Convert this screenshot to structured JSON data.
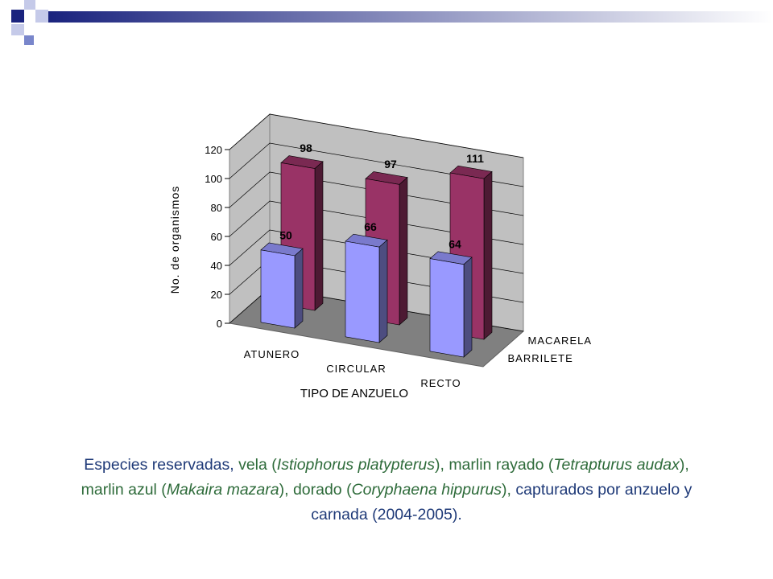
{
  "chart_data": {
    "type": "bar3d",
    "x_label": "TIPO DE ANZUELO",
    "y_label": "No. de organismos",
    "categories": [
      "ATUNERO",
      "CIRCULAR",
      "RECTO"
    ],
    "series": [
      {
        "name": "MACARELA",
        "color": "#993366",
        "values": [
          98,
          97,
          111
        ]
      },
      {
        "name": "BARRILETE",
        "color": "#9999ff",
        "values": [
          50,
          66,
          64
        ]
      }
    ],
    "ylim": [
      0,
      120
    ],
    "yticks": [
      0,
      20,
      40,
      60,
      80,
      100,
      120
    ],
    "grid": true
  },
  "caption": [
    {
      "text": "Especies reservadas,",
      "color": "#1f3a78",
      "italic": false
    },
    {
      "text": " vela (",
      "color": "#2e6b3a",
      "italic": false
    },
    {
      "text": "Istiophorus platypterus",
      "color": "#2e6b3a",
      "italic": true
    },
    {
      "text": "), marlin rayado (",
      "color": "#2e6b3a",
      "italic": false
    },
    {
      "text": "Tetrapturus audax",
      "color": "#2e6b3a",
      "italic": true
    },
    {
      "text": "), marlin azul (",
      "color": "#2e6b3a",
      "italic": false
    },
    {
      "text": "Makaira mazara",
      "color": "#2e6b3a",
      "italic": true
    },
    {
      "text": "), dorado (",
      "color": "#2e6b3a",
      "italic": false
    },
    {
      "text": "Coryphaena hippurus",
      "color": "#2e6b3a",
      "italic": true
    },
    {
      "text": "),",
      "color": "#2e6b3a",
      "italic": false
    },
    {
      "text": " capturados por anzuelo y carnada (2004-2005).",
      "color": "#1f3a78",
      "italic": false
    }
  ]
}
